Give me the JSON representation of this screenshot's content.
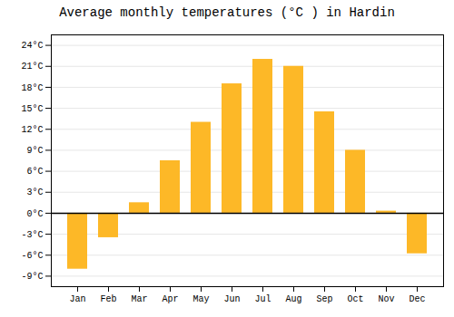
{
  "chart_data": {
    "type": "bar",
    "title": "Average monthly temperatures (°C ) in Hardin",
    "categories": [
      "Jan",
      "Feb",
      "Mar",
      "Apr",
      "May",
      "Jun",
      "Jul",
      "Aug",
      "Sep",
      "Oct",
      "Nov",
      "Dec"
    ],
    "values": [
      -8.0,
      -3.5,
      1.5,
      7.5,
      13.0,
      18.5,
      22.0,
      21.0,
      14.5,
      9.0,
      0.3,
      -5.8
    ],
    "color": "#FDB827",
    "ylim": [
      -10.5,
      25.5
    ],
    "yticks": [
      {
        "value": -9,
        "label": "-9°C"
      },
      {
        "value": -6,
        "label": "-6°C"
      },
      {
        "value": -3,
        "label": "-3°C"
      },
      {
        "value": 0,
        "label": "0°C"
      },
      {
        "value": 3,
        "label": "3°C"
      },
      {
        "value": 6,
        "label": "6°C"
      },
      {
        "value": 9,
        "label": "9°C"
      },
      {
        "value": 12,
        "label": "12°C"
      },
      {
        "value": 15,
        "label": "15°C"
      },
      {
        "value": 18,
        "label": "18°C"
      },
      {
        "value": 21,
        "label": "21°C"
      },
      {
        "value": 24,
        "label": "24°C"
      }
    ],
    "grid": true
  }
}
